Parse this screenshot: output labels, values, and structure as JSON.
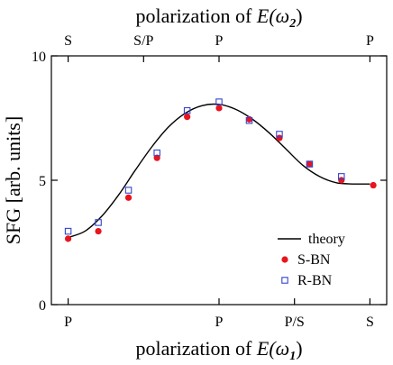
{
  "chart_data": {
    "type": "scatter",
    "title": "",
    "xlabel_bottom": {
      "text": "polarization of ",
      "symbol": "E(ω",
      "subscript": "1",
      "close": ")"
    },
    "xlabel_top": {
      "text": "polarization of ",
      "symbol": "E(ω",
      "subscript": "2",
      "close": ")"
    },
    "ylabel": "SFG  [arb. units]",
    "ylim": [
      0,
      10
    ],
    "xlim": [
      -10,
      190
    ],
    "y_ticks": [
      0,
      5,
      10
    ],
    "bottom_ticks": [
      {
        "x": 0,
        "label": "P"
      },
      {
        "x": 90,
        "label": "P"
      },
      {
        "x": 135,
        "label": "P/S"
      },
      {
        "x": 180,
        "label": "S"
      }
    ],
    "top_ticks": [
      {
        "x": 0,
        "label": "S"
      },
      {
        "x": 45,
        "label": "S/P"
      },
      {
        "x": 90,
        "label": "P"
      },
      {
        "x": 180,
        "label": "P"
      }
    ],
    "series": [
      {
        "name": "theory",
        "kind": "line",
        "color": "#000000",
        "x": [
          0,
          10,
          20,
          30,
          40,
          50,
          60,
          70,
          80,
          90,
          100,
          110,
          120,
          130,
          140,
          150,
          160,
          170,
          180
        ],
        "y": [
          2.7,
          2.95,
          3.55,
          4.4,
          5.4,
          6.35,
          7.15,
          7.7,
          8.0,
          8.05,
          7.85,
          7.45,
          6.9,
          6.25,
          5.6,
          5.15,
          4.9,
          4.85,
          4.85
        ]
      },
      {
        "name": "S-BN",
        "kind": "marker",
        "marker": "filled-circle",
        "color": "#e8141e",
        "x": [
          0,
          18,
          36,
          53,
          71,
          90,
          108,
          126,
          144,
          163,
          182
        ],
        "y": [
          2.65,
          2.95,
          4.3,
          5.9,
          7.55,
          7.9,
          7.45,
          6.7,
          5.65,
          5.0,
          4.8
        ]
      },
      {
        "name": "R-BN",
        "kind": "marker",
        "marker": "open-square",
        "color": "#3344cc",
        "x": [
          0,
          18,
          36,
          53,
          71,
          90,
          108,
          126,
          144,
          163
        ],
        "y": [
          2.95,
          3.3,
          4.6,
          6.1,
          7.8,
          8.15,
          7.4,
          6.85,
          5.65,
          5.15
        ]
      }
    ],
    "legend_placement": "bottom-right",
    "grid": false
  }
}
